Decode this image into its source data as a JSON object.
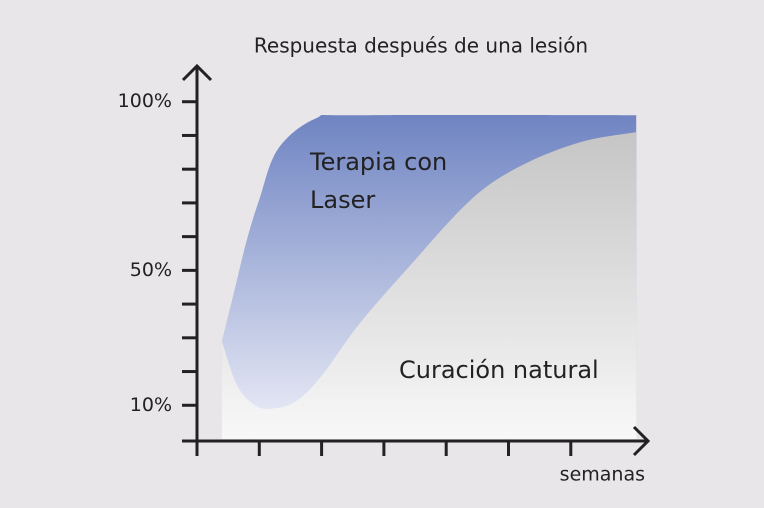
{
  "chart_data": {
    "type": "area",
    "title": "Respuesta después de una lesión",
    "xlabel": "semanas",
    "xlim": [
      0,
      7.3
    ],
    "xticks": [
      0,
      1,
      2,
      3,
      4,
      5,
      6
    ],
    "ylim": [
      0,
      110
    ],
    "yticks": [
      {
        "value": 10,
        "label": "10%"
      },
      {
        "value": 50,
        "label": "50%"
      },
      {
        "value": 100,
        "label": "100%"
      }
    ],
    "minor_yticks": [
      20,
      30,
      40,
      60,
      70,
      80,
      90
    ],
    "series": [
      {
        "name": "Terapia con Laser",
        "color": "#6f84c2",
        "x": [
          0.4,
          0.6,
          0.8,
          1.0,
          1.3,
          1.9,
          2.6,
          7.05
        ],
        "values": [
          29,
          44,
          59,
          71,
          86,
          95,
          96,
          96
        ]
      },
      {
        "name": "Curación natural",
        "color": "#c6c5c5",
        "x": [
          0.4,
          0.64,
          0.93,
          1.2,
          1.57,
          1.97,
          2.6,
          3.4,
          4.4,
          5.2,
          6.15,
          7.05
        ],
        "values": [
          29,
          16,
          10,
          9,
          11,
          18,
          34,
          51,
          71,
          81,
          88,
          91
        ]
      }
    ]
  }
}
